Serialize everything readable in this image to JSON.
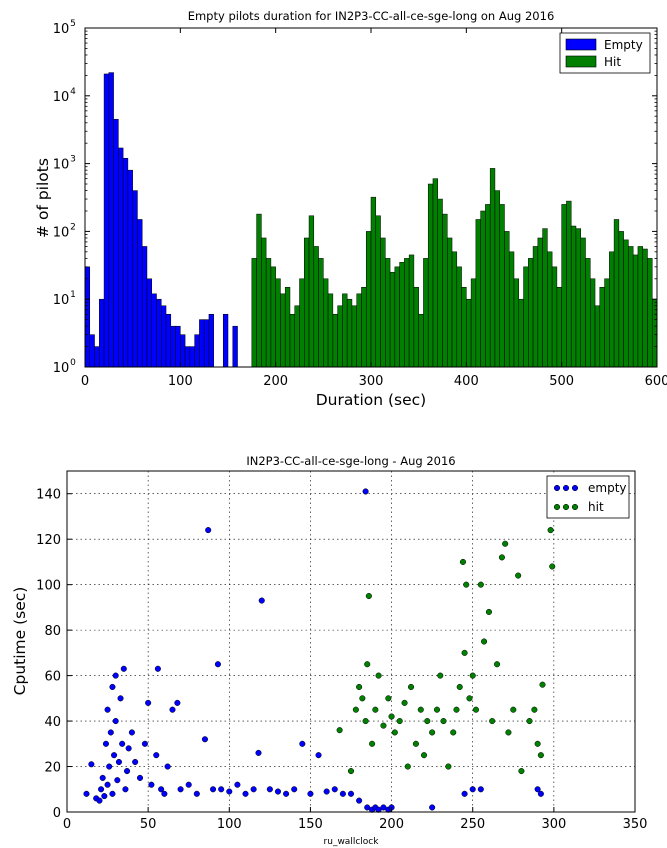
{
  "chart_data": [
    {
      "type": "bar",
      "title": "Empty pilots duration for IN2P3-CC-all-ce-sge-long on Aug 2016",
      "xlabel": "Duration (sec)",
      "ylabel": "# of pilots",
      "yscale": "log",
      "xlim": [
        0,
        600
      ],
      "ylim": [
        1,
        100000
      ],
      "bin_width": 5,
      "xticks": [
        "0",
        "100",
        "200",
        "300",
        "400",
        "500",
        "600"
      ],
      "yticks": [
        {
          "value": 1,
          "base": "10",
          "exp": "0"
        },
        {
          "value": 10,
          "base": "10",
          "exp": "1"
        },
        {
          "value": 100,
          "base": "10",
          "exp": "2"
        },
        {
          "value": 1000,
          "base": "10",
          "exp": "3"
        },
        {
          "value": 10000,
          "base": "10",
          "exp": "4"
        },
        {
          "value": 100000,
          "base": "10",
          "exp": "5"
        }
      ],
      "grid": false,
      "legend_position": "top-right",
      "series": [
        {
          "name": "Empty",
          "color": "#0000ff",
          "bin_starts": [
            0,
            5,
            10,
            15,
            20,
            25,
            30,
            35,
            40,
            45,
            50,
            55,
            60,
            65,
            70,
            75,
            80,
            85,
            90,
            95,
            100,
            105,
            110,
            115,
            120,
            125,
            130,
            140,
            145,
            150,
            155
          ],
          "values": [
            30,
            3,
            2,
            10,
            21000,
            22000,
            4500,
            1700,
            1200,
            800,
            400,
            150,
            60,
            20,
            12,
            10,
            8,
            6,
            4,
            4,
            3,
            2,
            2,
            3,
            5,
            5,
            6,
            0,
            6,
            0,
            4
          ]
        },
        {
          "name": "Hit",
          "color": "#007f00",
          "bin_starts": [
            175,
            180,
            185,
            190,
            195,
            200,
            205,
            210,
            215,
            220,
            225,
            230,
            235,
            240,
            245,
            250,
            255,
            260,
            265,
            270,
            275,
            280,
            285,
            290,
            295,
            300,
            305,
            310,
            315,
            320,
            325,
            330,
            335,
            340,
            345,
            350,
            355,
            360,
            365,
            370,
            375,
            380,
            385,
            390,
            395,
            400,
            405,
            410,
            415,
            420,
            425,
            430,
            435,
            440,
            445,
            450,
            455,
            460,
            465,
            470,
            475,
            480,
            485,
            490,
            495,
            500,
            505,
            510,
            515,
            520,
            525,
            530,
            535,
            540,
            545,
            550,
            555,
            560,
            565,
            570,
            575,
            580,
            585,
            590,
            595
          ],
          "values": [
            40,
            180,
            80,
            40,
            30,
            20,
            12,
            15,
            6,
            8,
            20,
            80,
            170,
            60,
            40,
            20,
            12,
            6,
            8,
            12,
            10,
            8,
            12,
            15,
            100,
            320,
            170,
            80,
            40,
            25,
            30,
            35,
            40,
            45,
            15,
            6,
            40,
            500,
            600,
            300,
            180,
            80,
            50,
            30,
            15,
            10,
            20,
            150,
            200,
            250,
            850,
            400,
            250,
            100,
            50,
            20,
            10,
            30,
            40,
            60,
            80,
            110,
            50,
            30,
            15,
            250,
            280,
            120,
            110,
            80,
            40,
            20,
            8,
            15,
            20,
            50,
            150,
            100,
            75,
            60,
            45,
            60,
            55,
            40,
            10
          ]
        }
      ]
    },
    {
      "type": "scatter",
      "title": "IN2P3-CC-all-ce-sge-long - Aug 2016",
      "xlabel": "ru_wallclock",
      "ylabel": "Cputime (sec)",
      "xlim": [
        0,
        350
      ],
      "ylim": [
        0,
        150
      ],
      "xticks": [
        "0",
        "50",
        "100",
        "150",
        "200",
        "250",
        "300",
        "350"
      ],
      "yticks": [
        "0",
        "20",
        "40",
        "60",
        "80",
        "100",
        "120",
        "140"
      ],
      "grid": true,
      "legend_position": "top-right",
      "series": [
        {
          "name": "empty",
          "color": "#0000ff",
          "points": [
            [
              12,
              8
            ],
            [
              15,
              21
            ],
            [
              18,
              6
            ],
            [
              20,
              5
            ],
            [
              21,
              10
            ],
            [
              22,
              15
            ],
            [
              23,
              7
            ],
            [
              24,
              30
            ],
            [
              25,
              12
            ],
            [
              25,
              45
            ],
            [
              26,
              20
            ],
            [
              27,
              35
            ],
            [
              28,
              8
            ],
            [
              28,
              55
            ],
            [
              29,
              25
            ],
            [
              30,
              40
            ],
            [
              30,
              60
            ],
            [
              31,
              14
            ],
            [
              32,
              22
            ],
            [
              33,
              50
            ],
            [
              34,
              30
            ],
            [
              35,
              63
            ],
            [
              36,
              10
            ],
            [
              37,
              18
            ],
            [
              38,
              28
            ],
            [
              40,
              35
            ],
            [
              42,
              22
            ],
            [
              45,
              15
            ],
            [
              48,
              30
            ],
            [
              50,
              48
            ],
            [
              52,
              12
            ],
            [
              55,
              25
            ],
            [
              56,
              63
            ],
            [
              58,
              10
            ],
            [
              60,
              8
            ],
            [
              62,
              20
            ],
            [
              65,
              45
            ],
            [
              68,
              48
            ],
            [
              70,
              10
            ],
            [
              75,
              12
            ],
            [
              80,
              8
            ],
            [
              85,
              32
            ],
            [
              87,
              124
            ],
            [
              90,
              10
            ],
            [
              93,
              65
            ],
            [
              95,
              10
            ],
            [
              100,
              9
            ],
            [
              105,
              12
            ],
            [
              110,
              8
            ],
            [
              115,
              10
            ],
            [
              118,
              26
            ],
            [
              120,
              93
            ],
            [
              125,
              10
            ],
            [
              130,
              9
            ],
            [
              135,
              8
            ],
            [
              140,
              10
            ],
            [
              145,
              30
            ],
            [
              150,
              8
            ],
            [
              155,
              25
            ],
            [
              160,
              9
            ],
            [
              165,
              10
            ],
            [
              170,
              8
            ],
            [
              175,
              8
            ],
            [
              180,
              5
            ],
            [
              184,
              141
            ],
            [
              185,
              2
            ],
            [
              188,
              1
            ],
            [
              190,
              2
            ],
            [
              192,
              1
            ],
            [
              195,
              2
            ],
            [
              198,
              1
            ],
            [
              200,
              2
            ],
            [
              225,
              2
            ],
            [
              245,
              8
            ],
            [
              250,
              10
            ],
            [
              255,
              10
            ],
            [
              290,
              10
            ],
            [
              292,
              8
            ]
          ]
        },
        {
          "name": "hit",
          "color": "#008000",
          "points": [
            [
              168,
              36
            ],
            [
              175,
              18
            ],
            [
              178,
              45
            ],
            [
              180,
              55
            ],
            [
              182,
              50
            ],
            [
              184,
              40
            ],
            [
              185,
              65
            ],
            [
              186,
              95
            ],
            [
              188,
              30
            ],
            [
              190,
              45
            ],
            [
              192,
              60
            ],
            [
              195,
              38
            ],
            [
              198,
              50
            ],
            [
              200,
              42
            ],
            [
              202,
              35
            ],
            [
              205,
              40
            ],
            [
              208,
              48
            ],
            [
              210,
              20
            ],
            [
              212,
              55
            ],
            [
              215,
              30
            ],
            [
              218,
              45
            ],
            [
              220,
              25
            ],
            [
              222,
              40
            ],
            [
              225,
              35
            ],
            [
              228,
              45
            ],
            [
              230,
              60
            ],
            [
              232,
              40
            ],
            [
              235,
              20
            ],
            [
              238,
              35
            ],
            [
              240,
              45
            ],
            [
              242,
              55
            ],
            [
              244,
              110
            ],
            [
              245,
              70
            ],
            [
              246,
              100
            ],
            [
              248,
              50
            ],
            [
              250,
              60
            ],
            [
              252,
              45
            ],
            [
              255,
              100
            ],
            [
              257,
              75
            ],
            [
              260,
              88
            ],
            [
              262,
              40
            ],
            [
              265,
              65
            ],
            [
              268,
              112
            ],
            [
              270,
              118
            ],
            [
              272,
              35
            ],
            [
              275,
              45
            ],
            [
              278,
              104
            ],
            [
              280,
              18
            ],
            [
              285,
              40
            ],
            [
              288,
              45
            ],
            [
              290,
              30
            ],
            [
              292,
              25
            ],
            [
              293,
              56
            ],
            [
              298,
              124
            ],
            [
              299,
              108
            ]
          ]
        }
      ]
    }
  ]
}
